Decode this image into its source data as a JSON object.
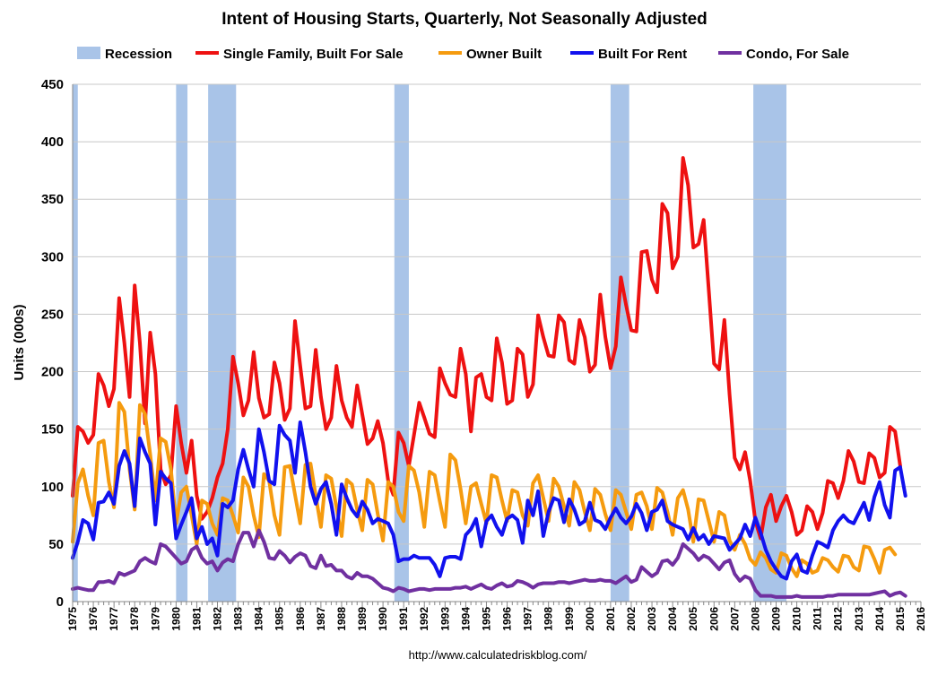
{
  "chart_data": {
    "type": "line",
    "title": "Intent of Housing Starts, Quarterly, Not Seasonally Adjusted",
    "xlabel": "",
    "ylabel": "Units  (000s)",
    "ylim": [
      0,
      450
    ],
    "yticks": [
      0,
      50,
      100,
      150,
      200,
      250,
      300,
      350,
      400,
      450
    ],
    "xlim": [
      1975,
      2016
    ],
    "xticks": [
      1975,
      1976,
      1977,
      1978,
      1979,
      1980,
      1981,
      1982,
      1983,
      1984,
      1985,
      1986,
      1987,
      1988,
      1989,
      1990,
      1991,
      1992,
      1993,
      1994,
      1995,
      1996,
      1997,
      1998,
      1999,
      2000,
      2001,
      2002,
      2003,
      2004,
      2005,
      2006,
      2007,
      2008,
      2009,
      2010,
      2011,
      2012,
      2013,
      2014,
      2015,
      2016
    ],
    "grid": true,
    "legend_position": "top",
    "source": "http://www.calculatedriskblog.com/",
    "recession_label": "Recession",
    "recession_color": "#a9c4e8",
    "recessions": [
      [
        1975.0,
        1975.25
      ],
      [
        1980.0,
        1980.55
      ],
      [
        1981.55,
        1982.9
      ],
      [
        1990.55,
        1991.25
      ],
      [
        2001.0,
        2001.9
      ],
      [
        2007.9,
        2009.5
      ]
    ],
    "series": [
      {
        "name": "Single Family, Built For Sale",
        "color": "#ee1111",
        "x_start": 1975.0,
        "x_step": 0.25,
        "values": [
          92,
          152,
          148,
          138,
          145,
          198,
          188,
          170,
          185,
          264,
          225,
          178,
          275,
          225,
          155,
          234,
          198,
          115,
          102,
          110,
          170,
          138,
          112,
          140,
          92,
          72,
          78,
          90,
          108,
          120,
          150,
          213,
          190,
          162,
          175,
          217,
          177,
          160,
          163,
          208,
          190,
          158,
          168,
          244,
          205,
          168,
          170,
          219,
          178,
          150,
          160,
          205,
          175,
          160,
          152,
          188,
          163,
          137,
          142,
          157,
          138,
          105,
          93,
          147,
          138,
          118,
          145,
          173,
          160,
          146,
          143,
          203,
          190,
          180,
          178,
          220,
          198,
          148,
          195,
          198,
          178,
          175,
          229,
          208,
          172,
          175,
          220,
          215,
          178,
          189,
          249,
          230,
          214,
          213,
          249,
          243,
          210,
          207,
          245,
          230,
          200,
          206,
          267,
          230,
          203,
          222,
          282,
          258,
          236,
          235,
          304,
          305,
          280,
          269,
          346,
          338,
          290,
          300,
          386,
          362,
          308,
          311,
          332,
          270,
          207,
          202,
          245,
          180,
          125,
          115,
          130,
          105,
          70,
          55,
          82,
          93,
          70,
          83,
          92,
          78,
          58,
          62,
          83,
          78,
          63,
          77,
          105,
          103,
          90,
          105,
          131,
          122,
          104,
          103,
          129,
          125,
          108,
          112,
          152,
          148,
          118
        ]
      },
      {
        "name": "Owner Built",
        "color": "#f59b0f",
        "x_start": 1975.0,
        "x_step": 0.25,
        "values": [
          52,
          103,
          115,
          92,
          75,
          138,
          140,
          104,
          82,
          173,
          165,
          115,
          80,
          171,
          163,
          128,
          88,
          142,
          139,
          115,
          68,
          95,
          100,
          75,
          50,
          88,
          85,
          68,
          58,
          90,
          88,
          75,
          60,
          108,
          100,
          75,
          56,
          111,
          105,
          75,
          58,
          117,
          118,
          93,
          68,
          119,
          120,
          92,
          65,
          110,
          107,
          82,
          57,
          106,
          102,
          80,
          62,
          106,
          102,
          76,
          53,
          104,
          100,
          78,
          70,
          118,
          114,
          95,
          65,
          113,
          110,
          87,
          65,
          128,
          123,
          98,
          68,
          100,
          103,
          85,
          68,
          110,
          108,
          88,
          70,
          97,
          95,
          75,
          66,
          103,
          110,
          90,
          70,
          107,
          100,
          83,
          66,
          104,
          97,
          78,
          62,
          98,
          93,
          76,
          62,
          97,
          93,
          78,
          63,
          93,
          95,
          83,
          63,
          99,
          95,
          78,
          58,
          90,
          97,
          80,
          52,
          89,
          88,
          70,
          52,
          78,
          75,
          53,
          45,
          58,
          50,
          37,
          32,
          43,
          38,
          28,
          25,
          42,
          40,
          29,
          22,
          36,
          33,
          25,
          27,
          38,
          36,
          30,
          26,
          40,
          39,
          30,
          27,
          48,
          47,
          37,
          25,
          45,
          47,
          41
        ]
      },
      {
        "name": "Built For Rent",
        "color": "#1111ee",
        "x_start": 1975.0,
        "x_step": 0.25,
        "values": [
          38,
          52,
          71,
          68,
          54,
          86,
          87,
          95,
          85,
          118,
          131,
          120,
          83,
          142,
          130,
          120,
          67,
          113,
          107,
          103,
          55,
          67,
          78,
          90,
          55,
          65,
          50,
          55,
          40,
          85,
          82,
          88,
          115,
          132,
          115,
          100,
          150,
          130,
          105,
          102,
          153,
          145,
          140,
          112,
          156,
          130,
          100,
          85,
          98,
          104,
          85,
          58,
          102,
          90,
          80,
          74,
          87,
          80,
          68,
          72,
          70,
          68,
          58,
          35,
          37,
          37,
          40,
          38,
          38,
          38,
          32,
          22,
          38,
          39,
          39,
          37,
          58,
          63,
          72,
          48,
          70,
          75,
          65,
          58,
          72,
          75,
          71,
          51,
          88,
          75,
          96,
          57,
          78,
          90,
          88,
          69,
          89,
          80,
          67,
          70,
          86,
          71,
          69,
          63,
          73,
          81,
          73,
          68,
          74,
          85,
          77,
          62,
          78,
          80,
          88,
          70,
          67,
          65,
          63,
          54,
          64,
          54,
          58,
          50,
          57,
          56,
          55,
          45,
          50,
          55,
          67,
          57,
          73,
          60,
          45,
          35,
          28,
          22,
          20,
          35,
          41,
          27,
          25,
          40,
          52,
          50,
          47,
          62,
          70,
          75,
          70,
          68,
          77,
          86,
          71,
          91,
          104,
          84,
          73,
          114,
          117,
          92
        ]
      },
      {
        "name": "Condo, For Sale",
        "color": "#7030a0",
        "x_start": 1975.0,
        "x_step": 0.25,
        "values": [
          11,
          12,
          11,
          10,
          10,
          17,
          17,
          18,
          16,
          25,
          23,
          25,
          27,
          35,
          38,
          35,
          33,
          50,
          48,
          43,
          38,
          33,
          35,
          45,
          48,
          38,
          33,
          35,
          27,
          34,
          37,
          35,
          50,
          60,
          60,
          48,
          62,
          52,
          38,
          37,
          44,
          40,
          34,
          39,
          42,
          40,
          31,
          29,
          40,
          31,
          32,
          27,
          27,
          22,
          20,
          25,
          22,
          22,
          20,
          16,
          12,
          11,
          9,
          12,
          11,
          9,
          10,
          11,
          11,
          10,
          11,
          11,
          11,
          11,
          12,
          12,
          13,
          11,
          13,
          15,
          12,
          11,
          14,
          16,
          13,
          14,
          18,
          17,
          15,
          12,
          15,
          16,
          16,
          16,
          17,
          17,
          16,
          17,
          18,
          19,
          18,
          18,
          19,
          18,
          18,
          16,
          19,
          22,
          17,
          19,
          30,
          26,
          22,
          25,
          35,
          36,
          32,
          38,
          50,
          46,
          42,
          36,
          40,
          38,
          33,
          28,
          34,
          36,
          24,
          18,
          22,
          20,
          10,
          5,
          5,
          5,
          4,
          4,
          4,
          4,
          5,
          4,
          4,
          4,
          4,
          4,
          5,
          5,
          6,
          6,
          6,
          6,
          6,
          6,
          6,
          7,
          8,
          9,
          5,
          7,
          8,
          5
        ]
      }
    ]
  }
}
